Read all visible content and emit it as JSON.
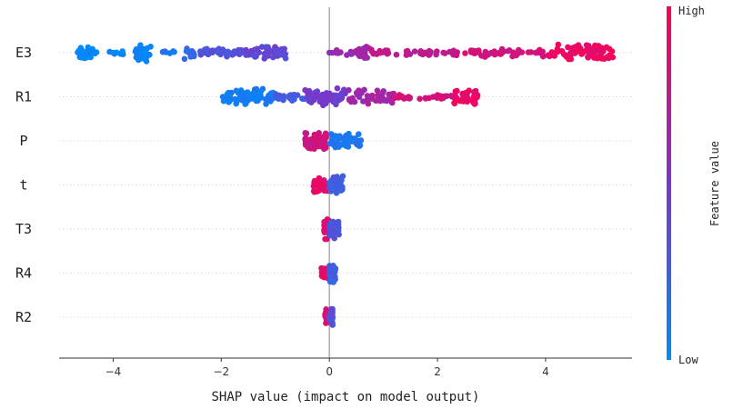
{
  "chart_data": {
    "type": "scatter",
    "subtype": "shap-beeswarm",
    "xlabel": "SHAP value (impact on model output)",
    "x_ticks": [
      "−4",
      "−2",
      "0",
      "2",
      "4"
    ],
    "x_tick_values": [
      -4,
      -2,
      0,
      2,
      4
    ],
    "xlim": [
      -5.0,
      5.6
    ],
    "colorbar": {
      "title": "Feature value",
      "high_label": "High",
      "low_label": "Low",
      "low_color": "#008afb",
      "high_color": "#ff0052"
    },
    "features": [
      {
        "name": "E3",
        "groups": [
          {
            "x_min": -4.7,
            "x_max": -4.3,
            "n": 26,
            "spread": 9,
            "value": 0.0
          },
          {
            "x_min": -4.1,
            "x_max": -3.7,
            "n": 8,
            "spread": 3,
            "value": 0.02
          },
          {
            "x_min": -3.6,
            "x_max": -3.3,
            "n": 30,
            "spread": 11,
            "value": 0.03
          },
          {
            "x_min": -3.1,
            "x_max": -2.8,
            "n": 6,
            "spread": 3,
            "value": 0.12
          },
          {
            "x_min": -2.7,
            "x_max": -2.5,
            "n": 14,
            "spread": 8,
            "value": 0.2
          },
          {
            "x_min": -2.4,
            "x_max": -1.6,
            "n": 30,
            "spread": 5,
            "value": 0.32
          },
          {
            "x_min": -1.6,
            "x_max": -0.8,
            "n": 44,
            "spread": 7,
            "value": 0.38
          },
          {
            "x_min": 0.0,
            "x_max": 0.6,
            "n": 18,
            "spread": 3,
            "value": 0.62
          },
          {
            "x_min": 0.55,
            "x_max": 0.75,
            "n": 22,
            "spread": 10,
            "value": 0.66
          },
          {
            "x_min": 0.75,
            "x_max": 2.4,
            "n": 46,
            "spread": 4,
            "value": 0.75
          },
          {
            "x_min": 2.5,
            "x_max": 4.0,
            "n": 46,
            "spread": 5,
            "value": 0.82
          },
          {
            "x_min": 4.0,
            "x_max": 5.25,
            "n": 85,
            "spread": 10,
            "value": 0.93
          }
        ]
      },
      {
        "name": "R1",
        "groups": [
          {
            "x_min": -2.0,
            "x_max": -1.0,
            "n": 70,
            "spread": 10,
            "value": 0.08
          },
          {
            "x_min": -1.0,
            "x_max": -0.45,
            "n": 24,
            "spread": 5,
            "value": 0.25
          },
          {
            "x_min": -0.45,
            "x_max": 0.3,
            "n": 70,
            "spread": 10,
            "value": 0.45
          },
          {
            "x_min": 0.3,
            "x_max": 1.2,
            "n": 45,
            "spread": 9,
            "value": 0.65
          },
          {
            "x_min": 1.2,
            "x_max": 2.3,
            "n": 30,
            "spread": 3,
            "value": 0.82
          },
          {
            "x_min": 2.3,
            "x_max": 2.75,
            "n": 40,
            "spread": 10,
            "value": 0.92
          }
        ]
      },
      {
        "name": "P",
        "groups": [
          {
            "x_min": -0.45,
            "x_max": -0.05,
            "n": 80,
            "spread": 11,
            "value": 0.82
          },
          {
            "x_min": 0.0,
            "x_max": 0.6,
            "n": 55,
            "spread": 9,
            "value": 0.12
          }
        ]
      },
      {
        "name": "t",
        "groups": [
          {
            "x_min": -0.3,
            "x_max": -0.02,
            "n": 30,
            "spread": 10,
            "value": 0.9
          },
          {
            "x_min": 0.0,
            "x_max": 0.25,
            "n": 45,
            "spread": 11,
            "value": 0.25
          }
        ]
      },
      {
        "name": "T3",
        "groups": [
          {
            "x_min": -0.1,
            "x_max": 0.0,
            "n": 40,
            "spread": 12,
            "value": 0.85
          },
          {
            "x_min": 0.0,
            "x_max": 0.18,
            "n": 45,
            "spread": 12,
            "value": 0.3
          }
        ]
      },
      {
        "name": "R4",
        "groups": [
          {
            "x_min": -0.15,
            "x_max": 0.0,
            "n": 30,
            "spread": 9,
            "value": 0.9
          },
          {
            "x_min": 0.0,
            "x_max": 0.12,
            "n": 40,
            "spread": 12,
            "value": 0.25
          }
        ]
      },
      {
        "name": "R2",
        "groups": [
          {
            "x_min": -0.08,
            "x_max": 0.0,
            "n": 25,
            "spread": 10,
            "value": 0.85
          },
          {
            "x_min": 0.0,
            "x_max": 0.06,
            "n": 30,
            "spread": 11,
            "value": 0.35
          }
        ]
      }
    ]
  }
}
